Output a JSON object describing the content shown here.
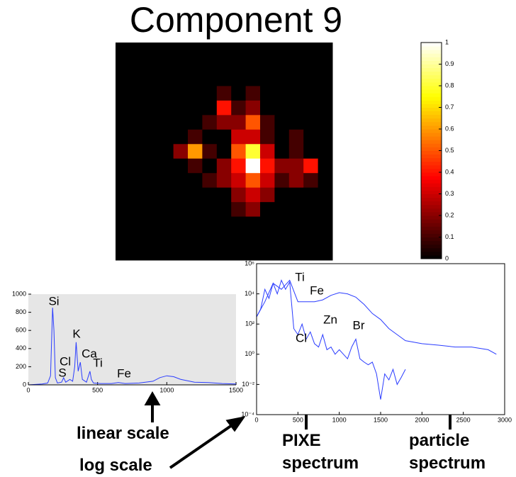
{
  "chart_data": [
    {
      "type": "heatmap",
      "title": "Component 9",
      "colormap": "hot",
      "zlim": [
        0,
        1
      ],
      "zticks": [
        0,
        0.1,
        0.2,
        0.3,
        0.4,
        0.5,
        0.6,
        0.7,
        0.8,
        0.9,
        1
      ],
      "z": [
        [
          0,
          0,
          0,
          0,
          0,
          0,
          0,
          0,
          0,
          0,
          0,
          0,
          0,
          0,
          0
        ],
        [
          0,
          0,
          0,
          0,
          0,
          0,
          0,
          0,
          0,
          0,
          0,
          0,
          0,
          0,
          0
        ],
        [
          0,
          0,
          0,
          0,
          0,
          0,
          0,
          0,
          0,
          0,
          0,
          0,
          0,
          0,
          0
        ],
        [
          0,
          0,
          0,
          0,
          0,
          0,
          0,
          0.1,
          0,
          0.1,
          0,
          0,
          0,
          0,
          0
        ],
        [
          0,
          0,
          0,
          0,
          0,
          0,
          0,
          0.4,
          0.1,
          0.2,
          0,
          0,
          0,
          0,
          0
        ],
        [
          0,
          0,
          0,
          0,
          0,
          0,
          0.1,
          0.2,
          0.2,
          0.5,
          0.1,
          0,
          0,
          0,
          0
        ],
        [
          0,
          0,
          0,
          0,
          0,
          0.1,
          0,
          0,
          0.3,
          0.3,
          0.1,
          0,
          0.1,
          0,
          0
        ],
        [
          0,
          0,
          0,
          0,
          0.2,
          0.6,
          0.1,
          0,
          0.5,
          0.8,
          0.3,
          0,
          0.1,
          0,
          0
        ],
        [
          0,
          0,
          0,
          0,
          0,
          0.1,
          0,
          0.2,
          0.4,
          1,
          0.4,
          0.2,
          0.2,
          0.4,
          0
        ],
        [
          0,
          0,
          0,
          0,
          0,
          0,
          0.1,
          0.2,
          0.3,
          0.5,
          0.3,
          0.1,
          0.2,
          0.1,
          0
        ],
        [
          0,
          0,
          0,
          0,
          0,
          0,
          0,
          0,
          0.2,
          0.3,
          0.2,
          0,
          0,
          0,
          0
        ],
        [
          0,
          0,
          0,
          0,
          0,
          0,
          0,
          0,
          0.1,
          0.2,
          0,
          0,
          0,
          0,
          0
        ],
        [
          0,
          0,
          0,
          0,
          0,
          0,
          0,
          0,
          0,
          0,
          0,
          0,
          0,
          0,
          0
        ],
        [
          0,
          0,
          0,
          0,
          0,
          0,
          0,
          0,
          0,
          0,
          0,
          0,
          0,
          0,
          0
        ],
        [
          0,
          0,
          0,
          0,
          0,
          0,
          0,
          0,
          0,
          0,
          0,
          0,
          0,
          0,
          0
        ]
      ]
    },
    {
      "type": "line",
      "log_y": false,
      "background": "#e6e6e6",
      "annotation": "linear scale",
      "xlim": [
        0,
        1500
      ],
      "xticks": [
        0,
        500,
        1000,
        1500
      ],
      "ylim": [
        0,
        1000
      ],
      "yticks": [
        0,
        200,
        400,
        600,
        800,
        1000
      ],
      "peaks": [
        "Si",
        "S",
        "Cl",
        "K",
        "Ca",
        "Ti",
        "Fe"
      ],
      "series": [
        {
          "color": "#2a3cff",
          "x": [
            0,
            50,
            100,
            140,
            160,
            175,
            185,
            195,
            210,
            240,
            255,
            270,
            300,
            320,
            335,
            345,
            360,
            375,
            390,
            420,
            445,
            455,
            470,
            520,
            600,
            650,
            700,
            800,
            900,
            950,
            1000,
            1050,
            1100,
            1200,
            1300,
            1400,
            1500
          ],
          "values": [
            0,
            5,
            10,
            20,
            100,
            850,
            600,
            80,
            20,
            30,
            80,
            30,
            60,
            40,
            200,
            470,
            150,
            250,
            60,
            30,
            150,
            60,
            20,
            15,
            15,
            25,
            15,
            20,
            40,
            80,
            100,
            90,
            60,
            30,
            25,
            15,
            10
          ]
        }
      ]
    },
    {
      "type": "line",
      "log_y": true,
      "annotation": "log scale",
      "xlim": [
        0,
        3000
      ],
      "xticks": [
        0,
        500,
        1000,
        1500,
        2000,
        2500,
        3000
      ],
      "ylim": [
        0.0001,
        1000000
      ],
      "yticks": [
        {
          "value": 1000000,
          "label": "10⁶"
        },
        {
          "value": 10000,
          "label": "10⁴"
        },
        {
          "value": 100,
          "label": "10²"
        },
        {
          "value": 1,
          "label": "10⁰"
        },
        {
          "value": 0.01,
          "label": "10⁻²"
        },
        {
          "value": 0.0001,
          "label": "10⁻⁴"
        }
      ],
      "peaks": [
        "Ti",
        "Fe",
        "Cl",
        "Zn",
        "Br"
      ],
      "series": [
        {
          "name": "particle spectrum",
          "color": "#2a3cff",
          "x": [
            0,
            100,
            200,
            300,
            400,
            500,
            600,
            700,
            800,
            900,
            1000,
            1100,
            1200,
            1300,
            1400,
            1500,
            1600,
            1700,
            1800,
            2000,
            2200,
            2400,
            2600,
            2800,
            2900
          ],
          "values": [
            300,
            3000,
            50000,
            20000,
            80000,
            3000,
            3000,
            3000,
            4000,
            8000,
            12000,
            10000,
            6000,
            2000,
            500,
            200,
            50,
            20,
            8,
            5,
            4,
            3,
            3,
            2,
            1
          ]
        },
        {
          "name": "PIXE spectrum",
          "color": "#2a3cff",
          "x": [
            0,
            50,
            100,
            150,
            200,
            250,
            300,
            350,
            400,
            450,
            500,
            550,
            600,
            650,
            700,
            750,
            800,
            850,
            900,
            950,
            1000,
            1050,
            1100,
            1150,
            1200,
            1250,
            1300,
            1350,
            1400,
            1450,
            1500,
            1550,
            1600,
            1650,
            1700,
            1750,
            1800
          ],
          "values": [
            300,
            1000,
            20000,
            5000,
            50000,
            10000,
            80000,
            20000,
            60000,
            50,
            20,
            100,
            10,
            30,
            5,
            3,
            20,
            2,
            3,
            1,
            2,
            1,
            0.5,
            3,
            10,
            0.5,
            0.3,
            0.2,
            0.3,
            0.05,
            0.001,
            0.05,
            0.02,
            0.1,
            0.01,
            0.03,
            0.1
          ]
        }
      ]
    }
  ]
}
